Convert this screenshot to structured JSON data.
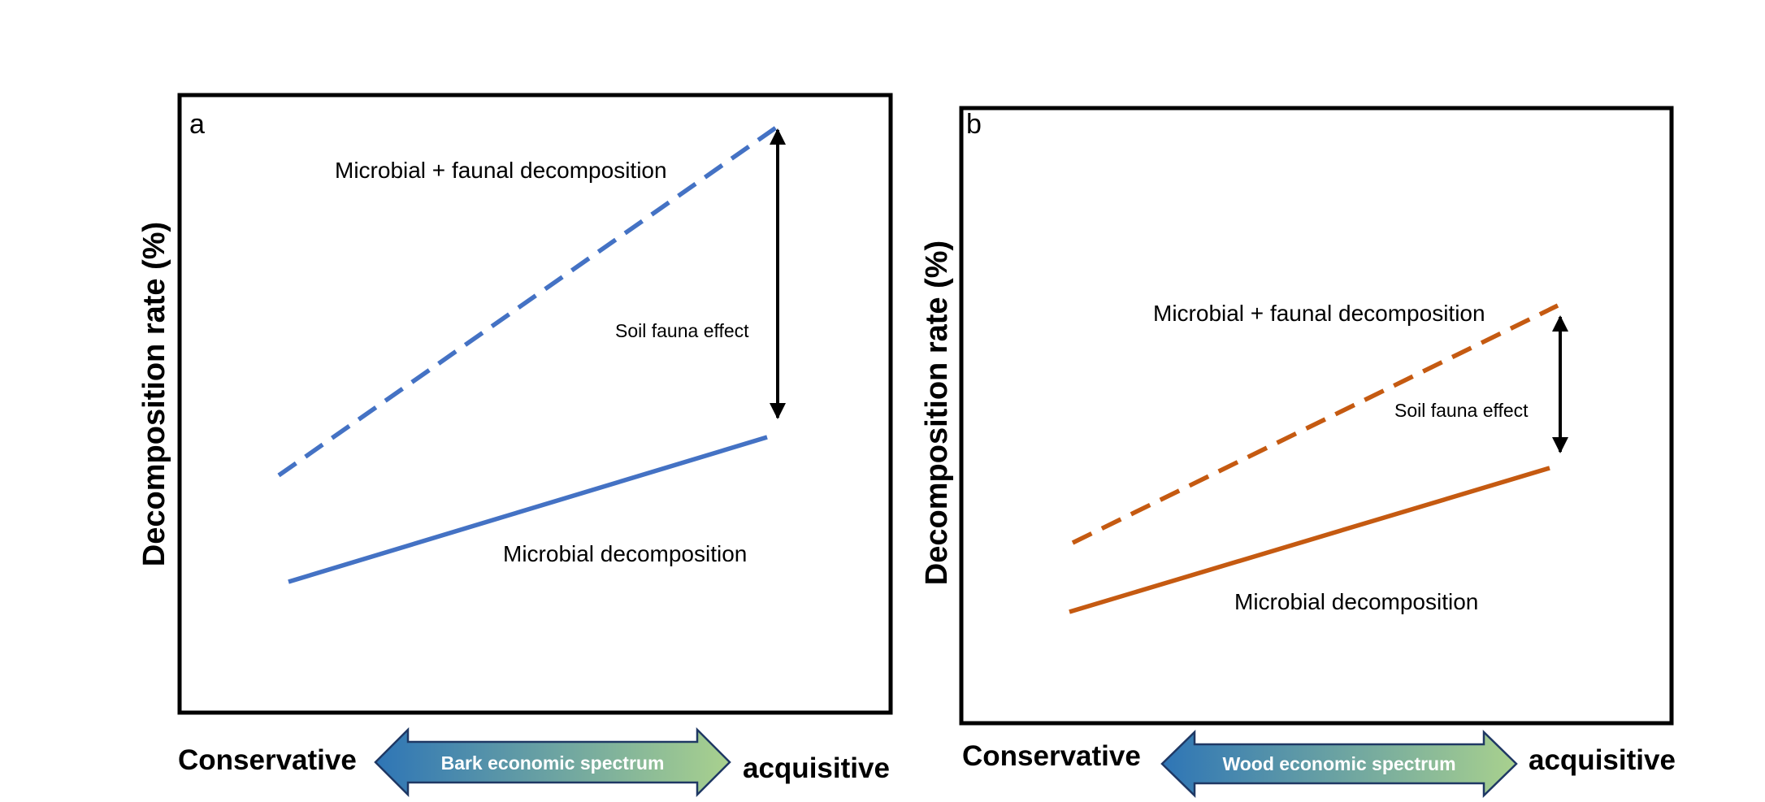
{
  "panels": [
    {
      "letter": "a",
      "y_axis_label": "Decomposition rate (%)",
      "upper_line_label": "Microbial + faunal decomposition",
      "effect_label": "Soil fauna effect",
      "lower_line_label": "Microbial decomposition",
      "spectrum_label": "Bark economic spectrum",
      "left_end": "Conservative",
      "right_end": "acquisitive",
      "line_color": "#4472C4"
    },
    {
      "letter": "b",
      "y_axis_label": "Decomposition rate (%)",
      "upper_line_label": "Microbial + faunal decomposition",
      "effect_label": "Soil fauna effect",
      "lower_line_label": "Microbial decomposition",
      "spectrum_label": "Wood economic spectrum",
      "left_end": "Conservative",
      "right_end": "acquisitive",
      "line_color": "#C55A11"
    }
  ],
  "spectrum_gradient": {
    "from": "#2E75B6",
    "to": "#A9D18E"
  }
}
